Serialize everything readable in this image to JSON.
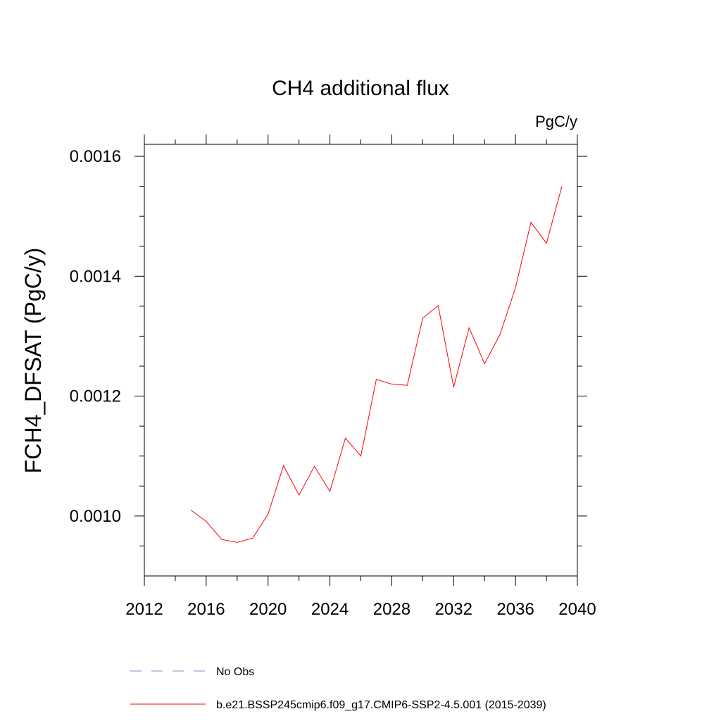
{
  "chart_data": {
    "type": "line",
    "title": "CH4 additional flux",
    "units_label": "PgC/y",
    "xlabel": "",
    "ylabel": "FCH4_DFSAT  (PgC/y)",
    "xlim": [
      2012,
      2040
    ],
    "ylim": [
      0.0009,
      0.00162
    ],
    "x_ticks": [
      2012,
      2016,
      2020,
      2024,
      2028,
      2032,
      2036,
      2040
    ],
    "x_tick_labels": [
      "2012",
      "2016",
      "2020",
      "2024",
      "2028",
      "2032",
      "2036",
      "2040"
    ],
    "y_ticks": [
      0.001,
      0.0012,
      0.0014,
      0.0016
    ],
    "y_tick_labels": [
      "0.0010",
      "0.0012",
      "0.0014",
      "0.0016"
    ],
    "grid": false,
    "legend_position": "bottom",
    "series": [
      {
        "name": "No Obs",
        "color": "#8888cc",
        "dash": "dashed",
        "x": [],
        "values": []
      },
      {
        "name": "b.e21.BSSP245cmip6.f09_g17.CMIP6-SSP2-4.5.001 (2015-2039)",
        "color": "#ff0000",
        "dash": "solid",
        "x": [
          2015,
          2016,
          2017,
          2018,
          2019,
          2020,
          2021,
          2022,
          2023,
          2024,
          2025,
          2026,
          2027,
          2028,
          2029,
          2030,
          2031,
          2032,
          2033,
          2034,
          2035,
          2036,
          2037,
          2038,
          2039
        ],
        "values": [
          0.00101,
          0.000991,
          0.000961,
          0.000956,
          0.000963,
          0.001003,
          0.001084,
          0.001035,
          0.001083,
          0.001041,
          0.00113,
          0.0011,
          0.001228,
          0.00122,
          0.001218,
          0.00133,
          0.001351,
          0.001215,
          0.001314,
          0.001254,
          0.001303,
          0.001381,
          0.00149,
          0.001455,
          0.00155
        ]
      }
    ]
  }
}
